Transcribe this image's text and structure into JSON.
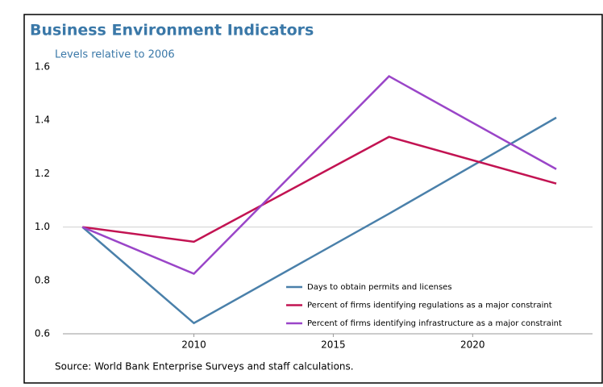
{
  "chart_data": {
    "type": "line",
    "title": "Business Environment Indicators",
    "subtitle": "Levels relative to 2006",
    "source": "Source: World Bank Enterprise Surveys and staff calculations.",
    "x": [
      2006,
      2010,
      2017,
      2023
    ],
    "xlim": [
      2005.3,
      2024.3
    ],
    "xticks": [
      2010,
      2015,
      2020
    ],
    "ylim": [
      0.6,
      1.6
    ],
    "yticks": [
      {
        "value": 0.6,
        "label": "0.6"
      },
      {
        "value": 0.8,
        "label": "0.8"
      },
      {
        "value": 1.0,
        "label": "1.0"
      },
      {
        "value": 1.2,
        "label": "1.2"
      },
      {
        "value": 1.4,
        "label": "1.4"
      },
      {
        "value": 1.6,
        "label": "1.6"
      }
    ],
    "reference_line": 1.0,
    "legend": "lower right",
    "series": [
      {
        "name": "Days to obtain permits and licenses",
        "color": "#4a80aa",
        "values": [
          1.0,
          0.64,
          1.05,
          1.41
        ]
      },
      {
        "name": "Percent of firms identifying regulations as a major constraint",
        "color": "#c21352",
        "values": [
          1.0,
          0.945,
          1.338,
          1.163
        ]
      },
      {
        "name": "Percent of firms identifying infrastructure as a major constraint",
        "color": "#9a45c8",
        "values": [
          1.0,
          0.825,
          1.565,
          1.217
        ]
      }
    ]
  }
}
